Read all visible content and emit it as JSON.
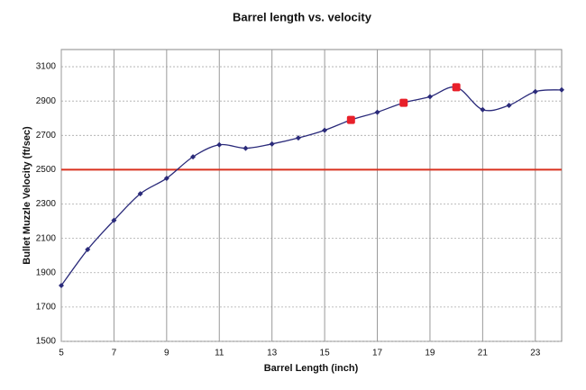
{
  "chart_data": {
    "type": "line",
    "title": "Barrel length vs. velocity",
    "x_label": "Barrel Length (inch)",
    "y_label": "Bullet Muzzle Velocity (ft/sec)",
    "x": [
      5,
      6,
      7,
      8,
      9,
      10,
      11,
      12,
      13,
      14,
      15,
      16,
      17,
      18,
      19,
      20,
      21,
      22,
      23,
      24
    ],
    "series": [
      {
        "name": "Velocity",
        "color": "#2a2a7a",
        "values": [
          1825,
          2035,
          2205,
          2360,
          2450,
          2575,
          2645,
          2625,
          2650,
          2685,
          2730,
          2790,
          2835,
          2890,
          2925,
          2980,
          2850,
          2875,
          2955,
          2965
        ]
      }
    ],
    "highlights": {
      "x": [
        16,
        18,
        20
      ],
      "color": "#e8202a"
    },
    "reference_line": {
      "value": 2500,
      "color": "#d9311f"
    },
    "xlim": [
      5,
      24
    ],
    "xticks": [
      5,
      7,
      9,
      11,
      13,
      15,
      17,
      19,
      21,
      23
    ],
    "ylim": [
      1500,
      3200
    ],
    "yticks": [
      1500,
      1700,
      1900,
      2100,
      2300,
      2500,
      2700,
      2900,
      3100
    ],
    "grid": true
  }
}
